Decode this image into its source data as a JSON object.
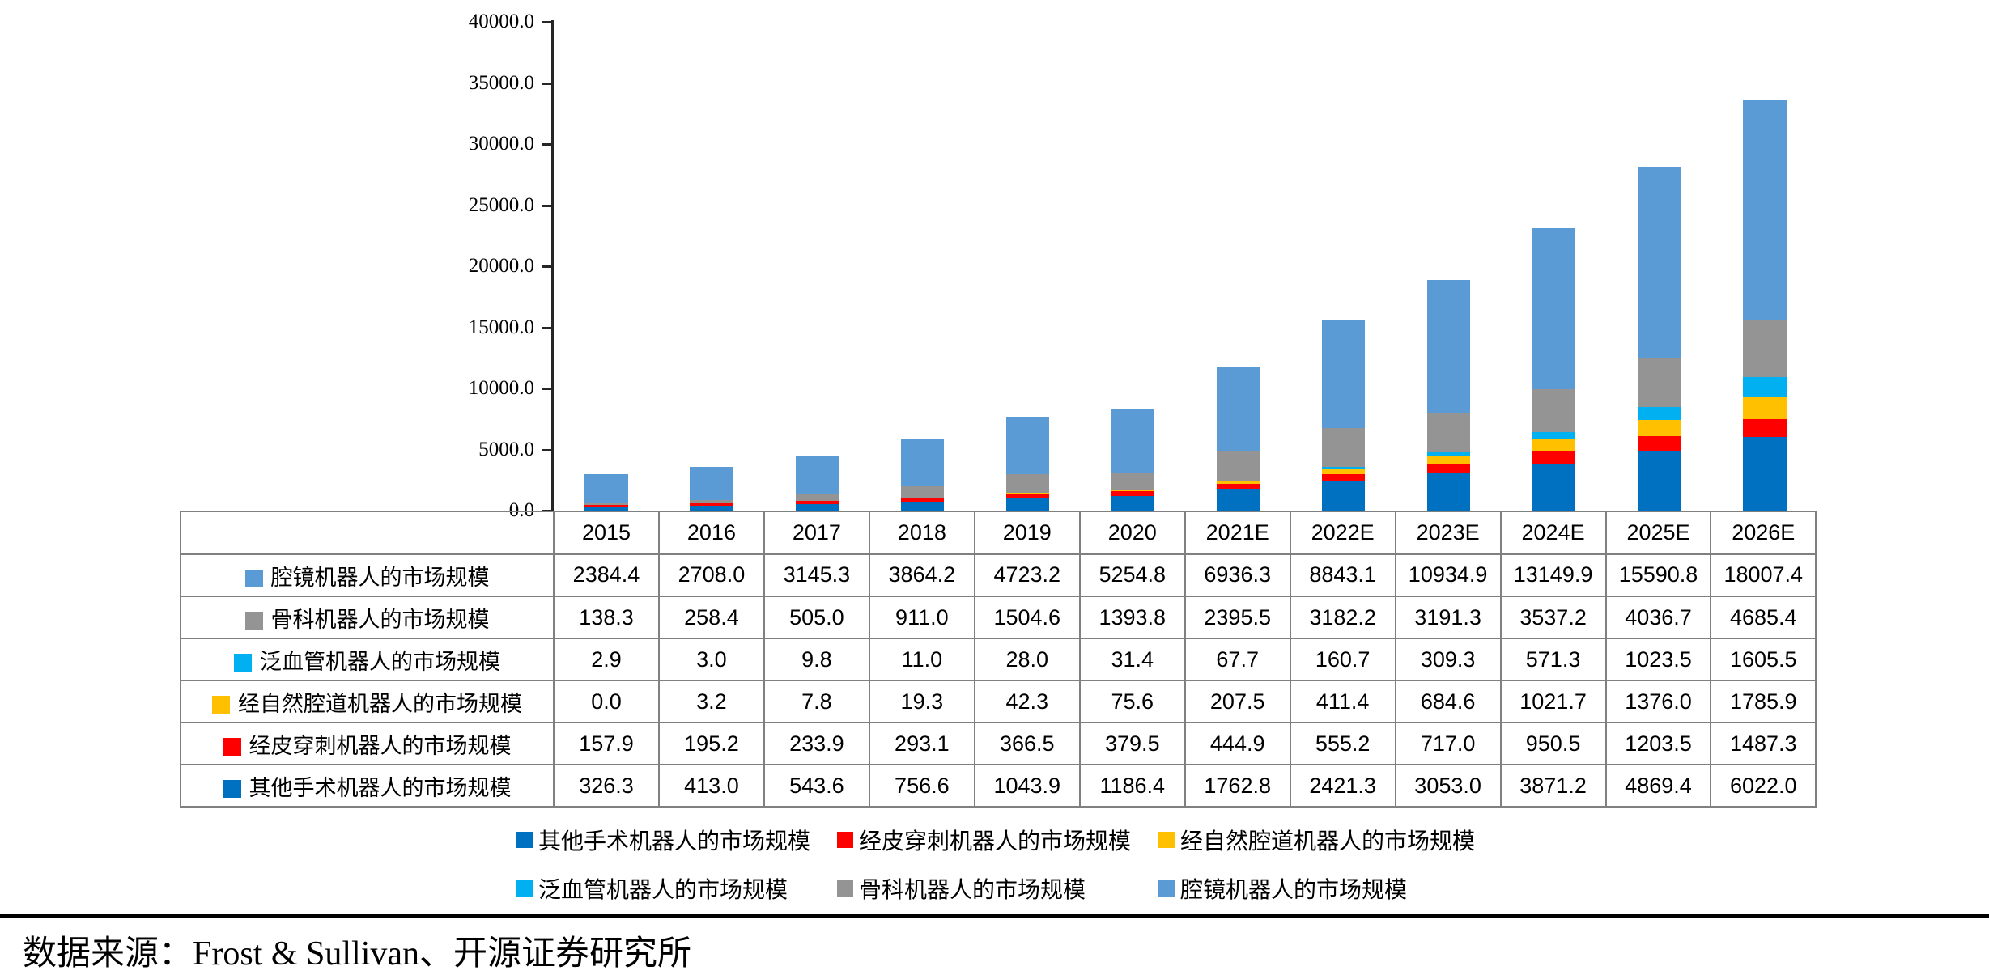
{
  "chart_data": {
    "type": "bar",
    "stacked": true,
    "grid": false,
    "legend_position": "bottom",
    "categories": [
      "2015",
      "2016",
      "2017",
      "2018",
      "2019",
      "2020",
      "2021E",
      "2022E",
      "2023E",
      "2024E",
      "2025E",
      "2026E"
    ],
    "series": [
      {
        "name": "其他手术机器人的市场规模",
        "color": "#0070C0",
        "values": [
          326.3,
          413.0,
          543.6,
          756.6,
          1043.9,
          1186.4,
          1762.8,
          2421.3,
          3053.0,
          3871.2,
          4869.4,
          6022.0
        ]
      },
      {
        "name": "经皮穿刺机器人的市场规模",
        "color": "#FF0000",
        "values": [
          157.9,
          195.2,
          233.9,
          293.1,
          366.5,
          379.5,
          444.9,
          555.2,
          717.0,
          950.5,
          1203.5,
          1487.3
        ]
      },
      {
        "name": "经自然腔道机器人的市场规模",
        "color": "#FFC000",
        "values": [
          0.0,
          3.2,
          7.8,
          19.3,
          42.3,
          75.6,
          207.5,
          411.4,
          684.6,
          1021.7,
          1376.0,
          1785.9
        ]
      },
      {
        "name": "泛血管机器人的市场规模",
        "color": "#00B0F0",
        "values": [
          2.9,
          3.0,
          9.8,
          11.0,
          28.0,
          31.4,
          67.7,
          160.7,
          309.3,
          571.3,
          1023.5,
          1605.5
        ]
      },
      {
        "name": "骨科机器人的市场规模",
        "color": "#949494",
        "values": [
          138.3,
          258.4,
          505.0,
          911.0,
          1504.6,
          1393.8,
          2395.5,
          3182.2,
          3191.3,
          3537.2,
          4036.7,
          4685.4
        ]
      },
      {
        "name": "腔镜机器人的市场规模",
        "color": "#5B9BD5",
        "values": [
          2384.4,
          2708.0,
          3145.3,
          3864.2,
          4723.2,
          5254.8,
          6936.3,
          8843.1,
          10934.9,
          13149.9,
          15590.8,
          18007.4
        ]
      }
    ],
    "ylim": [
      0,
      40000
    ],
    "ytick_step": 5000,
    "ytick_labels": [
      "40000.0",
      "35000.0",
      "30000.0",
      "25000.0",
      "20000.0",
      "15000.0",
      "10000.0",
      "5000.0",
      "0.0"
    ],
    "table_row_series_indices": [
      5,
      4,
      3,
      2,
      1,
      0
    ],
    "legend_rows": [
      [
        0,
        1,
        2
      ],
      [
        3,
        4,
        5
      ]
    ],
    "value_decimals": 1
  },
  "footer": {
    "source": "数据来源：Frost & Sullivan、开源证券研究所"
  }
}
